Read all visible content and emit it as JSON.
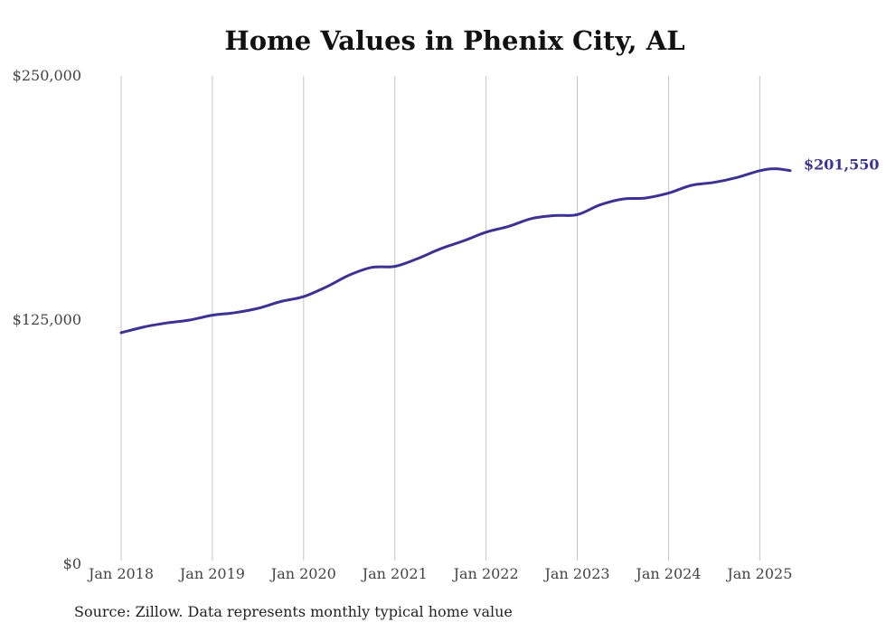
{
  "title": "Home Values in Phenix City, AL",
  "source_note": "Source: Zillow. Data represents monthly typical home value",
  "colors": {
    "line": "#3b3291",
    "grid": "#c4c4c4",
    "text": "#444444"
  },
  "chart_data": {
    "type": "line",
    "title": "Home Values in Phenix City, AL",
    "xlabel": "",
    "ylabel": "",
    "ylim": [
      0,
      250000
    ],
    "y_ticks": [
      0,
      125000,
      250000
    ],
    "y_tick_labels": [
      "$0",
      "$125,000",
      "$250,000"
    ],
    "x_ticks": [
      "2018-01",
      "2019-01",
      "2020-01",
      "2021-01",
      "2022-01",
      "2023-01",
      "2024-01",
      "2025-01"
    ],
    "x_tick_labels": [
      "Jan 2018",
      "Jan 2019",
      "Jan 2020",
      "Jan 2021",
      "Jan 2022",
      "Jan 2023",
      "Jan 2024",
      "Jan 2025"
    ],
    "grid": "vertical",
    "end_label": "$201,550",
    "series": [
      {
        "points": [
          [
            "2018-01",
            118500
          ],
          [
            "2018-04",
            121500
          ],
          [
            "2018-07",
            123500
          ],
          [
            "2018-10",
            125000
          ],
          [
            "2019-01",
            127500
          ],
          [
            "2019-04",
            128800
          ],
          [
            "2019-07",
            131000
          ],
          [
            "2019-10",
            134500
          ],
          [
            "2020-01",
            137000
          ],
          [
            "2020-04",
            142000
          ],
          [
            "2020-07",
            148000
          ],
          [
            "2020-10",
            152000
          ],
          [
            "2021-01",
            152500
          ],
          [
            "2021-04",
            156500
          ],
          [
            "2021-07",
            161500
          ],
          [
            "2021-10",
            165500
          ],
          [
            "2022-01",
            170000
          ],
          [
            "2022-04",
            173000
          ],
          [
            "2022-07",
            177000
          ],
          [
            "2022-10",
            178500
          ],
          [
            "2023-01",
            179000
          ],
          [
            "2023-04",
            184000
          ],
          [
            "2023-07",
            187000
          ],
          [
            "2023-10",
            187500
          ],
          [
            "2024-01",
            190000
          ],
          [
            "2024-04",
            194000
          ],
          [
            "2024-07",
            195500
          ],
          [
            "2024-10",
            198000
          ],
          [
            "2025-01",
            201500
          ],
          [
            "2025-03",
            202500
          ],
          [
            "2025-05",
            201550
          ]
        ]
      }
    ]
  }
}
